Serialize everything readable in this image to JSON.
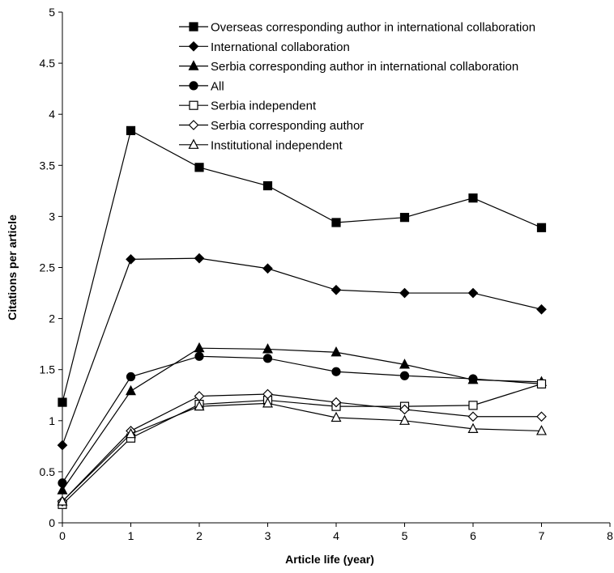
{
  "chart_data": {
    "type": "line",
    "title": "",
    "xlabel": "Article life (year)",
    "ylabel": "Citations per article",
    "xlim": [
      0,
      8
    ],
    "ylim": [
      0,
      5
    ],
    "xticks": [
      "0",
      "1",
      "2",
      "3",
      "4",
      "5",
      "6",
      "7",
      "8"
    ],
    "yticks": [
      "0",
      "0.5",
      "1",
      "1.5",
      "2",
      "2.5",
      "3",
      "3.5",
      "4",
      "4.5",
      "5"
    ],
    "grid": false,
    "legend_position": "top-right",
    "x": [
      0,
      1,
      2,
      3,
      4,
      5,
      6,
      7
    ],
    "series": [
      {
        "name": "Overseas corresponding author in international collaboration",
        "marker": "square-filled",
        "values": [
          1.18,
          3.84,
          3.48,
          3.3,
          2.94,
          2.99,
          3.18,
          2.89
        ]
      },
      {
        "name": "International collaboration",
        "marker": "diamond-filled",
        "values": [
          0.76,
          2.58,
          2.59,
          2.49,
          2.28,
          2.25,
          2.25,
          2.09
        ]
      },
      {
        "name": "Serbia corresponding author in international collaboration",
        "marker": "triangle-filled",
        "values": [
          0.32,
          1.29,
          1.71,
          1.7,
          1.67,
          1.55,
          1.4,
          1.38
        ]
      },
      {
        "name": "All",
        "marker": "circle-filled",
        "values": [
          0.39,
          1.43,
          1.63,
          1.61,
          1.48,
          1.44,
          1.41,
          1.36
        ]
      },
      {
        "name": "Serbia independent",
        "marker": "square-open",
        "values": [
          0.18,
          0.83,
          1.16,
          1.2,
          1.14,
          1.14,
          1.15,
          1.36
        ]
      },
      {
        "name": "Serbia corresponding author",
        "marker": "diamond-open",
        "values": [
          0.21,
          0.9,
          1.24,
          1.26,
          1.18,
          1.11,
          1.04,
          1.04
        ]
      },
      {
        "name": "Institutional independent",
        "marker": "triangle-open",
        "values": [
          0.21,
          0.87,
          1.14,
          1.17,
          1.03,
          1.0,
          0.92,
          0.9
        ]
      }
    ]
  }
}
